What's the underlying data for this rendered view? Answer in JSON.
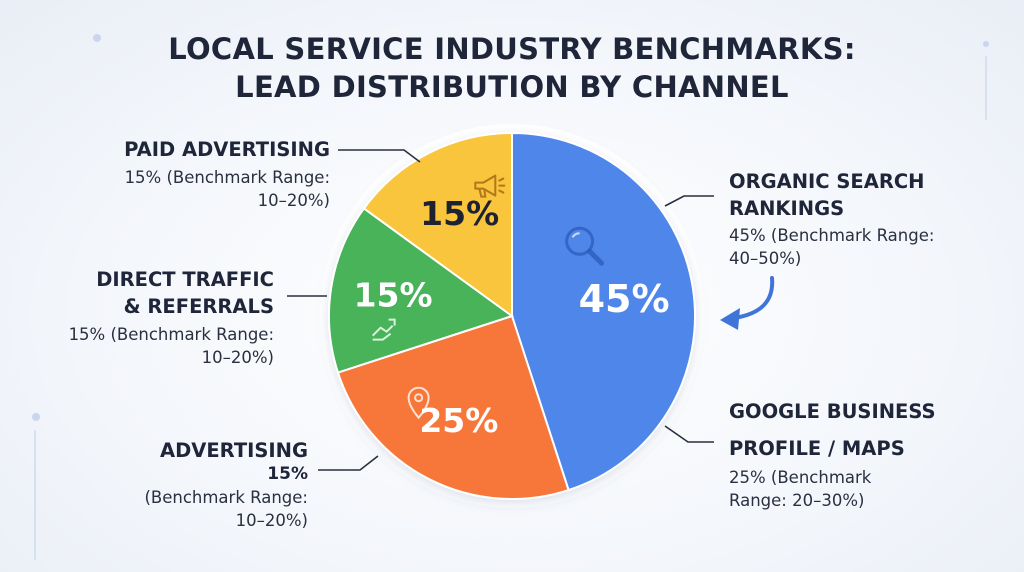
{
  "title": {
    "line1": "LOCAL SERVICE INDUSTRY BENCHMARKS:",
    "line2": "LEAD DISTRIBUTION BY CHANNEL"
  },
  "chart_data": {
    "type": "pie",
    "title": "LOCAL SERVICE INDUSTRY BENCHMARKS: LEAD DISTRIBUTION BY CHANNEL",
    "slices": [
      {
        "key": "organic",
        "value": 45,
        "display": "45%",
        "color": "#4f86ea",
        "icon": "magnifier-icon",
        "label_lines": [
          "ORGANIC SEARCH",
          "RANKINGS"
        ],
        "sub_lines": [
          "45% (Benchmark Range:",
          "40–50%)"
        ]
      },
      {
        "key": "gbp",
        "value": 25,
        "display": "25%",
        "color": "#f7773a",
        "icon": "map-pin-icon",
        "label_lines": [
          "GOOGLE BUSINESS",
          "PROFILE / MAPS"
        ],
        "sub_lines": [
          "25% (Benchmark",
          "Range: 20–30%)"
        ]
      },
      {
        "key": "direct",
        "value": 15,
        "display": "15%",
        "color": "#49b35a",
        "icon": "handshake-icon",
        "label_lines": [
          "DIRECT TRAFFIC",
          "& REFERRALS"
        ],
        "sub_lines": [
          "15% (Benchmark Range:",
          "10–20%)"
        ]
      },
      {
        "key": "paid",
        "value": 15,
        "display": "15%",
        "color": "#f9c53c",
        "icon": "megaphone-icon",
        "label_lines": [
          "PAID ADVERTISING"
        ],
        "sub_lines": [
          "15% (Benchmark Range:",
          "10–20%)"
        ]
      }
    ],
    "extra_label": {
      "label_lines": [
        "ADVERTISING",
        "15%"
      ],
      "sub_lines": [
        "(Benchmark Range:",
        "10–20%)"
      ]
    }
  }
}
